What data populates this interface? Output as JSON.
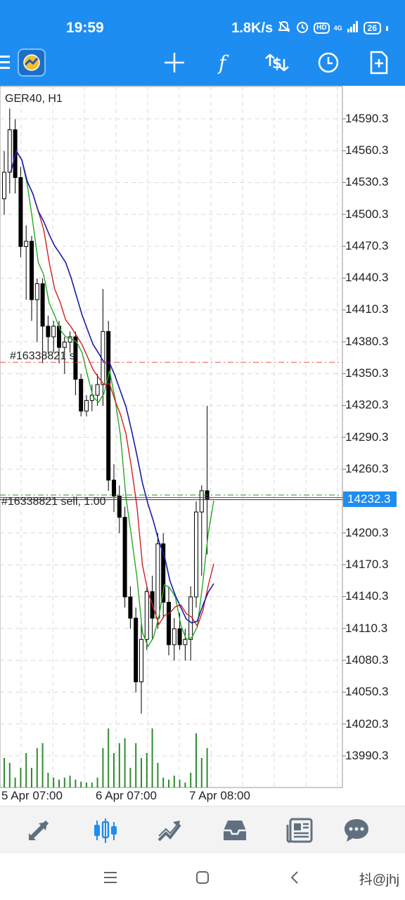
{
  "status": {
    "time": "19:59",
    "speed": "1.8K/s",
    "hd": "HD",
    "network": "4G",
    "battery": "26"
  },
  "toolbar": {
    "icons": [
      "menu-icon",
      "app-logo-icon",
      "crosshair-icon",
      "function-icon",
      "trade-dollar-icon",
      "clock-icon",
      "add-document-icon"
    ]
  },
  "chart": {
    "title": "GER40, H1",
    "price_labels": [
      "14590.3",
      "14560.3",
      "14530.3",
      "14500.3",
      "14470.3",
      "14440.3",
      "14410.3",
      "14380.3",
      "14350.3",
      "14320.3",
      "14290.3",
      "14260.3",
      "14200.3",
      "14170.3",
      "14140.3",
      "14110.3",
      "14080.3",
      "14050.3",
      "14020.3",
      "13990.3"
    ],
    "current_price": "14232.3",
    "time_labels": [
      "5 Apr 07:00",
      "6 Apr 07:00",
      "7 Apr 08:00"
    ],
    "order_sl_label": "#16338821 sl",
    "order_open_label": "#16338821 sell, 1.00",
    "colors": {
      "bull": "#000000",
      "bear": "#000000",
      "ma_fast": "#22aa22",
      "ma_mid": "#cc2222",
      "ma_slow": "#1a1aaa",
      "volume": "#2e8b2e",
      "sl_line": "#e05a4a",
      "open_line": "#2e8b2e",
      "price_line": "#c0202a"
    }
  },
  "chart_data": {
    "type": "candlestick",
    "title": "GER40, H1",
    "ylim": [
      13970,
      14610
    ],
    "y_ticks": [
      14590.3,
      14560.3,
      14530.3,
      14500.3,
      14470.3,
      14440.3,
      14410.3,
      14380.3,
      14350.3,
      14320.3,
      14290.3,
      14260.3,
      14200.3,
      14170.3,
      14140.3,
      14110.3,
      14080.3,
      14050.3,
      14020.3,
      13990.3
    ],
    "x_labels": [
      "5 Apr 07:00",
      "6 Apr 07:00",
      "7 Apr 08:00"
    ],
    "current_price": 14232.3,
    "sl_price": 14361,
    "open_price": 14236,
    "candles": [
      [
        14515,
        14560,
        14500,
        14540
      ],
      [
        14540,
        14600,
        14520,
        14580
      ],
      [
        14580,
        14590,
        14520,
        14535
      ],
      [
        14535,
        14545,
        14460,
        14470
      ],
      [
        14470,
        14490,
        14420,
        14475
      ],
      [
        14475,
        14480,
        14400,
        14420
      ],
      [
        14420,
        14440,
        14380,
        14435
      ],
      [
        14435,
        14440,
        14360,
        14395
      ],
      [
        14395,
        14405,
        14370,
        14385
      ],
      [
        14385,
        14400,
        14370,
        14395
      ],
      [
        14395,
        14400,
        14360,
        14375
      ],
      [
        14375,
        14385,
        14350,
        14380
      ],
      [
        14380,
        14390,
        14370,
        14385
      ],
      [
        14385,
        14390,
        14330,
        14345
      ],
      [
        14345,
        14350,
        14310,
        14315
      ],
      [
        14315,
        14330,
        14310,
        14325
      ],
      [
        14325,
        14340,
        14315,
        14330
      ],
      [
        14330,
        14350,
        14320,
        14340
      ],
      [
        14340,
        14430,
        14320,
        14390
      ],
      [
        14390,
        14400,
        14240,
        14250
      ],
      [
        14250,
        14265,
        14220,
        14235
      ],
      [
        14235,
        14245,
        14200,
        14215
      ],
      [
        14215,
        14225,
        14130,
        14140
      ],
      [
        14140,
        14150,
        14110,
        14120
      ],
      [
        14120,
        14130,
        14050,
        14060
      ],
      [
        14060,
        14120,
        14030,
        14100
      ],
      [
        14100,
        14150,
        14090,
        14145
      ],
      [
        14145,
        14160,
        14100,
        14120
      ],
      [
        14120,
        14200,
        14110,
        14190
      ],
      [
        14190,
        14200,
        14120,
        14135
      ],
      [
        14135,
        14150,
        14085,
        14095
      ],
      [
        14095,
        14120,
        14080,
        14110
      ],
      [
        14110,
        14125,
        14090,
        14095
      ],
      [
        14095,
        14110,
        14080,
        14100
      ],
      [
        14100,
        14150,
        14080,
        14140
      ],
      [
        14140,
        14230,
        14130,
        14220
      ],
      [
        14220,
        14245,
        14160,
        14240
      ],
      [
        14240,
        14320,
        14180,
        14232
      ]
    ],
    "volume": [
      30,
      25,
      10,
      20,
      35,
      20,
      40,
      45,
      15,
      10,
      8,
      10,
      12,
      8,
      6,
      5,
      5,
      10,
      40,
      60,
      35,
      45,
      50,
      20,
      45,
      30,
      35,
      60,
      25,
      10,
      8,
      12,
      8,
      5,
      15,
      55,
      30,
      40
    ]
  },
  "bottom_nav": {
    "items": [
      "quotes-icon",
      "chart-icon",
      "trade-icon",
      "history-icon",
      "news-icon",
      "chat-icon"
    ]
  },
  "system_nav": {
    "items": [
      "recent-apps-icon",
      "home-icon",
      "back-icon"
    ],
    "watermark": "抖@jhj"
  }
}
